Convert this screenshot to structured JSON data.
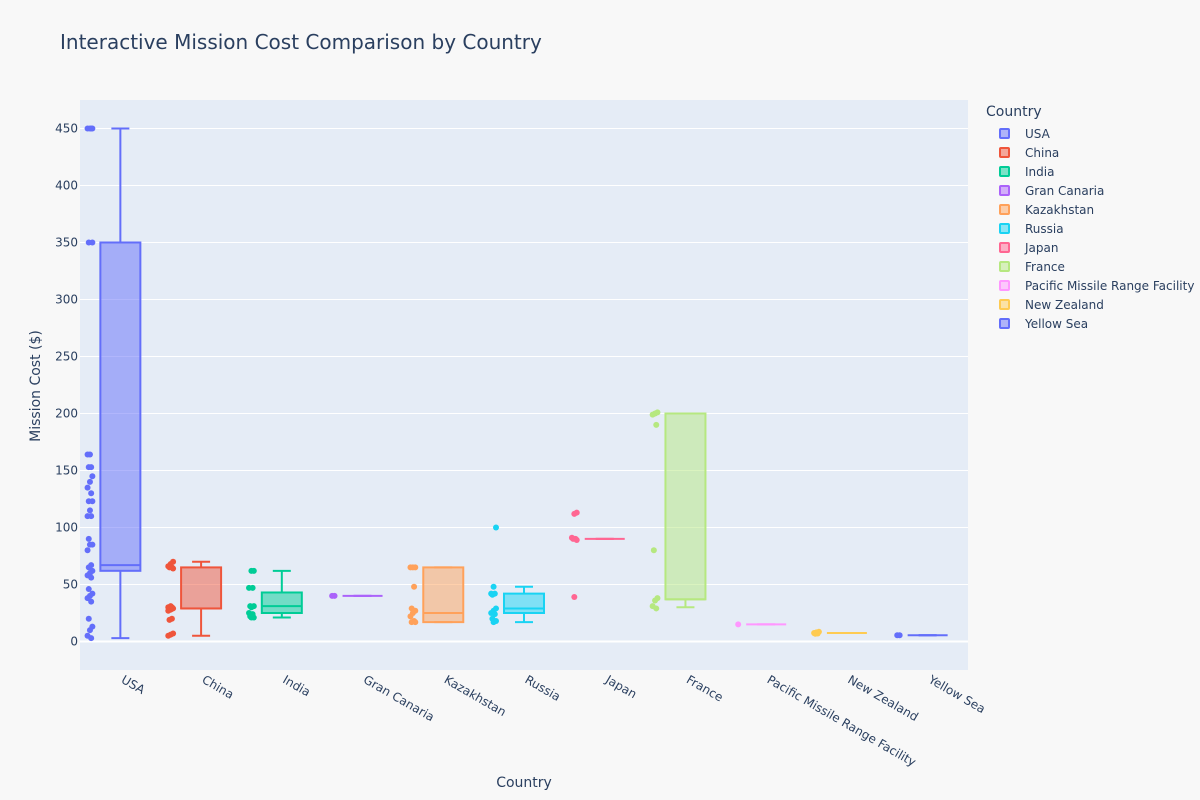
{
  "chart_data": {
    "type": "box",
    "title": "Interactive Mission Cost Comparison by Country",
    "xlabel": "Country",
    "ylabel": "Mission Cost ($)",
    "ylim": [
      -25,
      475
    ],
    "y_ticks": [
      0,
      50,
      100,
      150,
      200,
      250,
      300,
      350,
      400,
      450
    ],
    "grid": true,
    "legend_title": "Country",
    "legend_position": "right",
    "boxpoints": "all",
    "series": [
      {
        "name": "USA",
        "color": "#636efa",
        "min": 3,
        "q1": 62,
        "median": 67,
        "q3": 350,
        "max": 450,
        "points": [
          450,
          450,
          450,
          450,
          350,
          350,
          164,
          164,
          153,
          153,
          145,
          140,
          135,
          130,
          123,
          123,
          115,
          110,
          110,
          90,
          85,
          85,
          80,
          67,
          65,
          62,
          60,
          58,
          56,
          46,
          42,
          40,
          38,
          35,
          20,
          13,
          10,
          5,
          3
        ]
      },
      {
        "name": "China",
        "color": "#ef553b",
        "min": 5,
        "q1": 29,
        "median": 29,
        "q3": 65,
        "max": 70,
        "points": [
          70,
          68,
          66,
          65,
          65,
          64,
          31,
          30,
          30,
          29,
          29,
          28,
          27,
          20,
          19,
          7,
          6,
          5
        ]
      },
      {
        "name": "India",
        "color": "#00cc96",
        "min": 21,
        "q1": 25,
        "median": 31,
        "q3": 43,
        "max": 62,
        "points": [
          62,
          62,
          47,
          47,
          31,
          31,
          30,
          25,
          24,
          22,
          21,
          21
        ]
      },
      {
        "name": "Gran Canaria",
        "color": "#ab63fa",
        "min": 40,
        "q1": 40,
        "median": 40,
        "q3": 40,
        "max": 40,
        "points": [
          40,
          40
        ]
      },
      {
        "name": "Kazakhstan",
        "color": "#ffa15a",
        "min": 17,
        "q1": 17,
        "median": 25,
        "q3": 65,
        "max": 65,
        "points": [
          65,
          65,
          65,
          48,
          29,
          27,
          25,
          22,
          18,
          17,
          17
        ]
      },
      {
        "name": "Russia",
        "color": "#19d3f3",
        "min": 17,
        "q1": 25,
        "median": 29,
        "q3": 42,
        "max": 48,
        "points": [
          100,
          48,
          42,
          42,
          41,
          29,
          27,
          25,
          24,
          20,
          18,
          17
        ]
      },
      {
        "name": "Japan",
        "color": "#ff6692",
        "min": 90,
        "q1": 90,
        "median": 90,
        "q3": 90,
        "max": 90,
        "points": [
          113,
          112,
          91,
          90,
          90,
          89,
          39
        ]
      },
      {
        "name": "France",
        "color": "#b6e880",
        "min": 30,
        "q1": 37,
        "median": 37,
        "q3": 200,
        "max": 200,
        "points": [
          201,
          200,
          199,
          190,
          80,
          38,
          36,
          31,
          29
        ]
      },
      {
        "name": "Pacific Missile Range Facility",
        "color": "#ff97ff",
        "min": 15,
        "q1": 15,
        "median": 15,
        "q3": 15,
        "max": 15,
        "points": [
          15
        ]
      },
      {
        "name": "New Zealand",
        "color": "#fecb52",
        "min": 7.5,
        "q1": 7.5,
        "median": 7.5,
        "q3": 7.5,
        "max": 7.5,
        "points": [
          8.5,
          8,
          7.5,
          7,
          6.8
        ]
      },
      {
        "name": "Yellow Sea",
        "color": "#636efa",
        "min": 5.5,
        "q1": 5.5,
        "median": 5.5,
        "q3": 5.5,
        "max": 5.5,
        "points": [
          5.5,
          5.5
        ]
      }
    ]
  }
}
